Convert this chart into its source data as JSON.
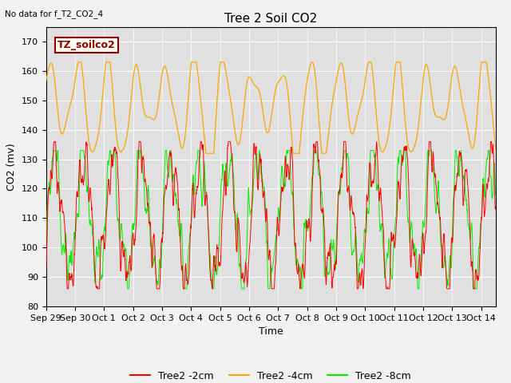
{
  "title": "Tree 2 Soil CO2",
  "top_left_text": "No data for f_T2_CO2_4",
  "annotation_box": "TZ_soilco2",
  "xlabel": "Time",
  "ylabel": "CO2 (mv)",
  "ylim": [
    80,
    175
  ],
  "xlim_days": [
    0,
    15.5
  ],
  "x_tick_labels": [
    "Sep 29",
    "Sep 30",
    "Oct 1",
    "Oct 2",
    "Oct 3",
    "Oct 4",
    "Oct 5",
    "Oct 6",
    "Oct 7",
    "Oct 8",
    "Oct 9",
    "Oct 10",
    "Oct 11",
    "Oct 12",
    "Oct 13",
    "Oct 14"
  ],
  "x_tick_positions": [
    0,
    1,
    2,
    3,
    4,
    5,
    6,
    7,
    8,
    9,
    10,
    11,
    12,
    13,
    14,
    15
  ],
  "yticks": [
    80,
    90,
    100,
    110,
    120,
    130,
    140,
    150,
    160,
    170
  ],
  "color_2cm": "#ff0000",
  "color_4cm": "#ffa500",
  "color_8cm": "#00ee00",
  "fig_bg": "#f2f2f2",
  "plot_bg": "#e0e0e0",
  "legend_labels": [
    "Tree2 -2cm",
    "Tree2 -4cm",
    "Tree2 -8cm"
  ],
  "title_fontsize": 11,
  "label_fontsize": 9,
  "tick_fontsize": 8,
  "annotation_fontsize": 9,
  "num_points": 3000
}
